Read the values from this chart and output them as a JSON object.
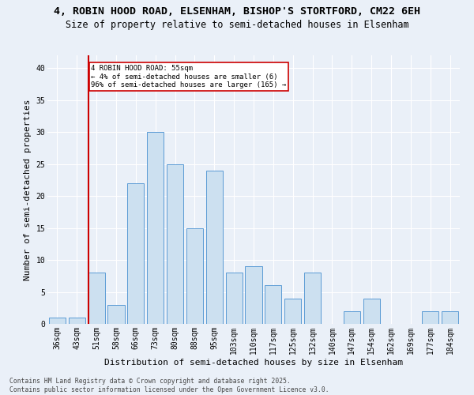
{
  "title1": "4, ROBIN HOOD ROAD, ELSENHAM, BISHOP'S STORTFORD, CM22 6EH",
  "title2": "Size of property relative to semi-detached houses in Elsenham",
  "xlabel": "Distribution of semi-detached houses by size in Elsenham",
  "ylabel": "Number of semi-detached properties",
  "categories": [
    "36sqm",
    "43sqm",
    "51sqm",
    "58sqm",
    "66sqm",
    "73sqm",
    "80sqm",
    "88sqm",
    "95sqm",
    "103sqm",
    "110sqm",
    "117sqm",
    "125sqm",
    "132sqm",
    "140sqm",
    "147sqm",
    "154sqm",
    "162sqm",
    "169sqm",
    "177sqm",
    "184sqm"
  ],
  "values": [
    1,
    1,
    8,
    3,
    22,
    30,
    25,
    15,
    24,
    8,
    9,
    6,
    4,
    8,
    0,
    2,
    4,
    0,
    0,
    2,
    2
  ],
  "bar_color": "#cce0f0",
  "bar_edge_color": "#5b9bd5",
  "vline_index": 2,
  "vline_color": "#cc0000",
  "annotation_text": "4 ROBIN HOOD ROAD: 55sqm\n← 4% of semi-detached houses are smaller (6)\n96% of semi-detached houses are larger (165) →",
  "annotation_box_color": "white",
  "annotation_box_edge_color": "#cc0000",
  "ylim": [
    0,
    42
  ],
  "yticks": [
    0,
    5,
    10,
    15,
    20,
    25,
    30,
    35,
    40
  ],
  "footnote": "Contains HM Land Registry data © Crown copyright and database right 2025.\nContains public sector information licensed under the Open Government Licence v3.0.",
  "bg_color": "#eaf0f8",
  "grid_color": "white",
  "title_fontsize": 9.5,
  "subtitle_fontsize": 8.5,
  "tick_fontsize": 7,
  "ylabel_fontsize": 8,
  "xlabel_fontsize": 8,
  "footnote_fontsize": 5.8
}
